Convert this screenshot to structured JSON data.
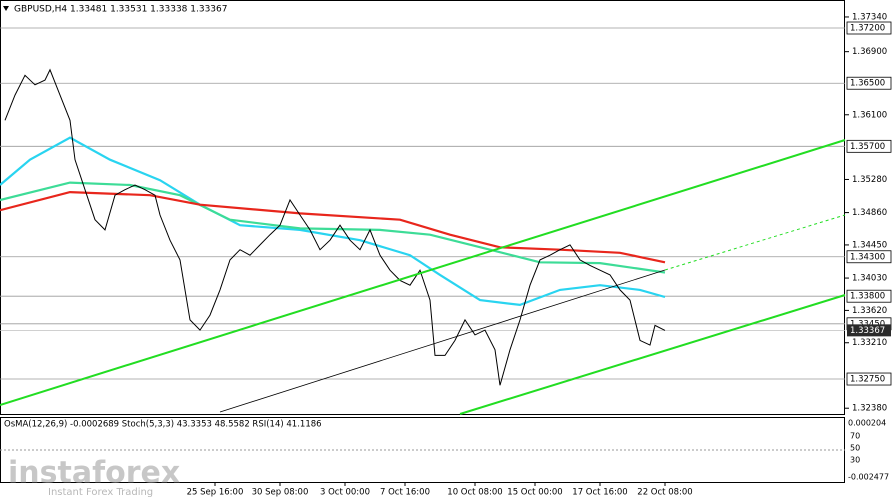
{
  "chart_data": {
    "type": "line",
    "title": "GBPUSD,H4  1.33481 1.33531 1.33338 1.33367",
    "ylim": [
      1.32294,
      1.37555
    ],
    "xlim": [
      0,
      169
    ],
    "yticks": [
      {
        "value": 1.3734,
        "label": "1.37340"
      },
      {
        "value": 1.369,
        "label": "1.36900"
      },
      {
        "value": 1.361,
        "label": "1.36100"
      },
      {
        "value": 1.3528,
        "label": "1.35280"
      },
      {
        "value": 1.3486,
        "label": "1.34860"
      },
      {
        "value": 1.3445,
        "label": "1.34450"
      },
      {
        "value": 1.3403,
        "label": "1.34030"
      },
      {
        "value": 1.3362,
        "label": "1.33620"
      },
      {
        "value": 1.3321,
        "label": "1.33210"
      },
      {
        "value": 1.3238,
        "label": "1.32380"
      }
    ],
    "levels": [
      {
        "value": 1.372,
        "label": "1.37200"
      },
      {
        "value": 1.365,
        "label": "1.36500"
      },
      {
        "value": 1.357,
        "label": "1.35700"
      },
      {
        "value": 1.343,
        "label": "1.34300"
      },
      {
        "value": 1.338,
        "label": "1.33800"
      },
      {
        "value": 1.3345,
        "label": "1.33450"
      },
      {
        "value": 1.3275,
        "label": "1.32750"
      }
    ],
    "current_price": 1.33367,
    "xticks": [
      {
        "value": 43,
        "label": "25 Sep 16:00"
      },
      {
        "value": 56,
        "label": "30 Sep 08:00"
      },
      {
        "value": 69,
        "label": "3 Oct 00:00"
      },
      {
        "value": 81,
        "label": "7 Oct 16:00"
      },
      {
        "value": 95,
        "label": "10 Oct 08:00"
      },
      {
        "value": 107,
        "label": "15 Oct 00:00"
      },
      {
        "value": 120,
        "label": "17 Oct 16:00"
      },
      {
        "value": 133,
        "label": "22 Oct 08:00"
      }
    ],
    "series": [
      {
        "color": "#000000",
        "x": [
          1,
          3,
          5,
          7,
          9,
          10,
          12,
          14,
          15,
          17,
          19,
          21,
          23,
          25,
          27,
          29,
          31,
          32,
          34,
          36,
          38,
          40,
          42,
          44,
          46,
          48,
          50,
          52,
          54,
          56,
          58,
          60,
          62,
          64,
          66,
          68,
          70,
          72,
          74,
          76,
          78,
          80,
          82,
          84,
          86,
          87,
          89,
          91,
          93,
          95,
          97,
          99,
          100,
          102,
          104,
          106,
          108,
          110,
          112,
          114,
          116,
          118,
          120,
          122,
          124,
          126,
          128,
          130,
          131,
          133
        ],
        "values": [
          1.3603,
          1.3635,
          1.366,
          1.3648,
          1.3654,
          1.3667,
          1.3635,
          1.3603,
          1.3553,
          1.3515,
          1.3477,
          1.3464,
          1.3508,
          1.3515,
          1.3521,
          1.3515,
          1.3508,
          1.3483,
          1.3451,
          1.3426,
          1.335,
          1.3337,
          1.3356,
          1.3388,
          1.3426,
          1.3439,
          1.3432,
          1.3445,
          1.3458,
          1.347,
          1.3502,
          1.3483,
          1.3464,
          1.3439,
          1.3451,
          1.347,
          1.3451,
          1.3439,
          1.3464,
          1.3432,
          1.3413,
          1.34,
          1.3394,
          1.3413,
          1.3375,
          1.3305,
          1.3305,
          1.3324,
          1.335,
          1.3331,
          1.3337,
          1.3312,
          1.3267,
          1.3312,
          1.335,
          1.3394,
          1.3426,
          1.3432,
          1.3439,
          1.3445,
          1.3426,
          1.3419,
          1.3413,
          1.3407,
          1.3388,
          1.3375,
          1.3324,
          1.3318,
          1.3343,
          1.33367
        ]
      },
      {
        "color": "#e8261c",
        "x": [
          0,
          14,
          30,
          40,
          60,
          80,
          90,
          100,
          112,
          124,
          133
        ],
        "values": [
          1.3489,
          1.3512,
          1.3508,
          1.3496,
          1.3485,
          1.3477,
          1.3458,
          1.3442,
          1.3439,
          1.3435,
          1.3423
        ]
      },
      {
        "color": "#3ddc97",
        "x": [
          0,
          14,
          26,
          36,
          46,
          60,
          76,
          86,
          98,
          108,
          120,
          133
        ],
        "values": [
          1.3502,
          1.3524,
          1.3521,
          1.3508,
          1.3477,
          1.3466,
          1.3464,
          1.3458,
          1.3439,
          1.3423,
          1.3422,
          1.341
        ]
      },
      {
        "color": "#29d4f0",
        "x": [
          0,
          6,
          14,
          22,
          32,
          40,
          48,
          60,
          72,
          82,
          88,
          96,
          104,
          112,
          120,
          128,
          133
        ],
        "values": [
          1.3521,
          1.3553,
          1.3581,
          1.3553,
          1.3527,
          1.3496,
          1.347,
          1.3464,
          1.3451,
          1.3432,
          1.3407,
          1.3375,
          1.3369,
          1.3388,
          1.3394,
          1.3388,
          1.3379
        ]
      }
    ],
    "oscillator": {
      "label": "OsMA(12,26,9) -0.0002689  Stoch(5,3,3) 43.3353 48.5582  RSI(14) 41.1186",
      "axis_top": "0.000204",
      "axis_bottom": "-0.002477",
      "levels": [
        "70",
        "50",
        "30"
      ]
    },
    "watermark": {
      "brand": "instaforex",
      "tagline": "Instant Forex Trading"
    }
  }
}
